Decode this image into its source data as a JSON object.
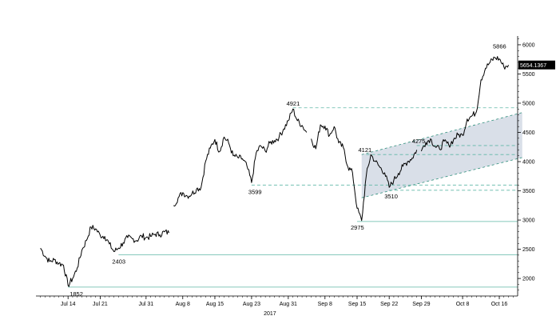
{
  "chart_data": {
    "type": "line",
    "title": "",
    "xlabel": "2017",
    "ylabel": "",
    "ylim": [
      1700,
      6150
    ],
    "y_ticks": [
      2000,
      2500,
      3000,
      3500,
      4000,
      4500,
      5000,
      5500,
      6000
    ],
    "x_ticks": [
      "Jul 14",
      "Jul 21",
      "Jul 31",
      "Aug 8",
      "Aug 15",
      "Aug 23",
      "Aug 31",
      "Sep 8",
      "Sep 15",
      "Sep 22",
      "Sep 29",
      "Oct 8",
      "Oct 16"
    ],
    "year_label": "2017",
    "last_value_label": "5654.1367",
    "grid": false,
    "colors": {
      "price_line": "#000000",
      "level_line": "#5fb7a6",
      "channel_fill": "#d9dfe8",
      "channel_border": "#2f8f7c",
      "last_value_bg": "#000000",
      "last_value_text": "#ffffff"
    },
    "horizontal_levels": [
      1852,
      2403,
      2975,
      3510,
      3599,
      4121,
      4275,
      4921
    ],
    "channel": {
      "start_date": "Sep 16",
      "end_date": "Oct 21",
      "lower": [
        3380,
        4070
      ],
      "upper": [
        4120,
        4840
      ]
    },
    "annotations": [
      {
        "date": "Jul 14",
        "value": 1852,
        "text": "1852"
      },
      {
        "date": "Jul 25",
        "value": 2403,
        "text": "2403"
      },
      {
        "date": "Aug 23",
        "value": 3599,
        "text": "3599"
      },
      {
        "date": "Sep 1",
        "value": 4921,
        "text": "4921"
      },
      {
        "date": "Sep 15",
        "value": 2975,
        "text": "2975"
      },
      {
        "date": "Sep 17",
        "value": 4121,
        "text": "4121"
      },
      {
        "date": "Sep 22",
        "value": 3510,
        "text": "3510"
      },
      {
        "date": "Sep 28",
        "value": 4275,
        "text": "4275"
      },
      {
        "date": "Oct 16",
        "value": 5866,
        "text": "5866"
      }
    ],
    "series": [
      {
        "x": [
          "Jul 8",
          "Jul 9",
          "Jul 10",
          "Jul 11",
          "Jul 12",
          "Jul 13",
          "Jul 14",
          "Jul 15",
          "Jul 16",
          "Jul 17",
          "Jul 18",
          "Jul 19",
          "Jul 20",
          "Jul 21",
          "Jul 22",
          "Jul 23",
          "Jul 24",
          "Jul 25",
          "Jul 26",
          "Jul 27",
          "Jul 28",
          "Jul 29",
          "Jul 30",
          "Jul 31",
          "Aug 1",
          "Aug 2",
          "Aug 3",
          "Aug 4",
          "Aug 5"
        ],
        "values": [
          2520,
          2380,
          2290,
          2320,
          2260,
          2230,
          1880,
          2000,
          2180,
          2480,
          2650,
          2880,
          2850,
          2740,
          2720,
          2590,
          2460,
          2520,
          2610,
          2700,
          2680,
          2650,
          2730,
          2700,
          2720,
          2760,
          2750,
          2800,
          2780
        ]
      },
      {
        "x": [
          "Aug 6",
          "Aug 7",
          "Aug 8",
          "Aug 9",
          "Aug 10",
          "Aug 11",
          "Aug 12",
          "Aug 13",
          "Aug 14",
          "Aug 15",
          "Aug 16",
          "Aug 17",
          "Aug 18",
          "Aug 19",
          "Aug 20",
          "Aug 21",
          "Aug 22",
          "Aug 23",
          "Aug 24",
          "Aug 25",
          "Aug 26",
          "Aug 27",
          "Aug 28",
          "Aug 29",
          "Aug 30",
          "Aug 31",
          "Sep 1",
          "Sep 2",
          "Sep 3",
          "Sep 4"
        ],
        "values": [
          3250,
          3380,
          3470,
          3410,
          3450,
          3530,
          3560,
          4010,
          4230,
          4380,
          4170,
          4420,
          4320,
          4100,
          4070,
          4050,
          3920,
          3640,
          4150,
          4270,
          4180,
          4320,
          4360,
          4420,
          4560,
          4700,
          4900,
          4700,
          4620,
          4500
        ]
      },
      {
        "x": [
          "Sep 5",
          "Sep 6",
          "Sep 7",
          "Sep 8",
          "Sep 9",
          "Sep 10",
          "Sep 11",
          "Sep 12",
          "Sep 13",
          "Sep 14",
          "Sep 15",
          "Sep 16",
          "Sep 17",
          "Sep 18",
          "Sep 19",
          "Sep 20",
          "Sep 21",
          "Sep 22",
          "Sep 23",
          "Sep 24",
          "Sep 25",
          "Sep 26",
          "Sep 27",
          "Sep 28"
        ],
        "values": [
          4390,
          4220,
          4630,
          4610,
          4450,
          4600,
          4320,
          4240,
          3910,
          3810,
          3200,
          2990,
          3760,
          4120,
          4000,
          3900,
          3810,
          3560,
          3680,
          3800,
          3920,
          4000,
          4060,
          4200
        ]
      },
      {
        "x": [
          "Sep 29",
          "Sep 30",
          "Oct 1",
          "Oct 2",
          "Oct 3",
          "Oct 4",
          "Oct 5",
          "Oct 6",
          "Oct 7",
          "Oct 8",
          "Oct 9",
          "Oct 10",
          "Oct 11",
          "Oct 12",
          "Oct 13",
          "Oct 14",
          "Oct 15",
          "Oct 16",
          "Oct 17",
          "Oct 18"
        ],
        "values": [
          4180,
          4330,
          4390,
          4260,
          4210,
          4350,
          4280,
          4370,
          4460,
          4450,
          4730,
          4780,
          4850,
          5400,
          5600,
          5700,
          5780,
          5760,
          5620,
          5654
        ]
      }
    ]
  }
}
